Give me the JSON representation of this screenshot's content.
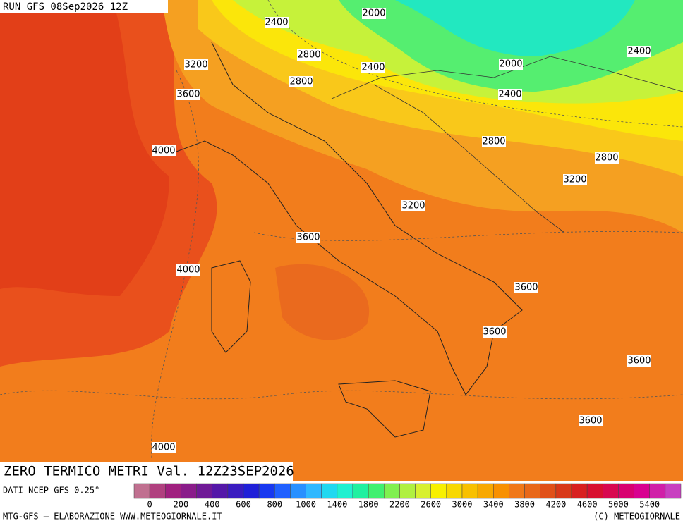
{
  "header": {
    "run": "RUN GFS 08Sep2026 12Z"
  },
  "contour_labels": [
    2000,
    2400,
    3200,
    2800,
    2400,
    2800,
    3600,
    2000,
    2400,
    2400,
    4000,
    2800,
    2800,
    3200,
    3200,
    3600,
    4000,
    3600,
    3600,
    3600,
    3600,
    4000
  ],
  "title": "ZERO TERMICO METRI Val. 12Z23SEP2026",
  "source": "DATI NCEP GFS 0.25°",
  "legend": {
    "labels": [
      0,
      200,
      400,
      600,
      800,
      1000,
      1400,
      1800,
      2200,
      2600,
      3000,
      3400,
      3800,
      4200,
      4600,
      5000,
      5400
    ]
  },
  "footer": {
    "left": "MTG-GFS — ELABORAZIONE WWW.METEOGIORNALE.IT",
    "right": "(C) METEOGIORNALE"
  }
}
